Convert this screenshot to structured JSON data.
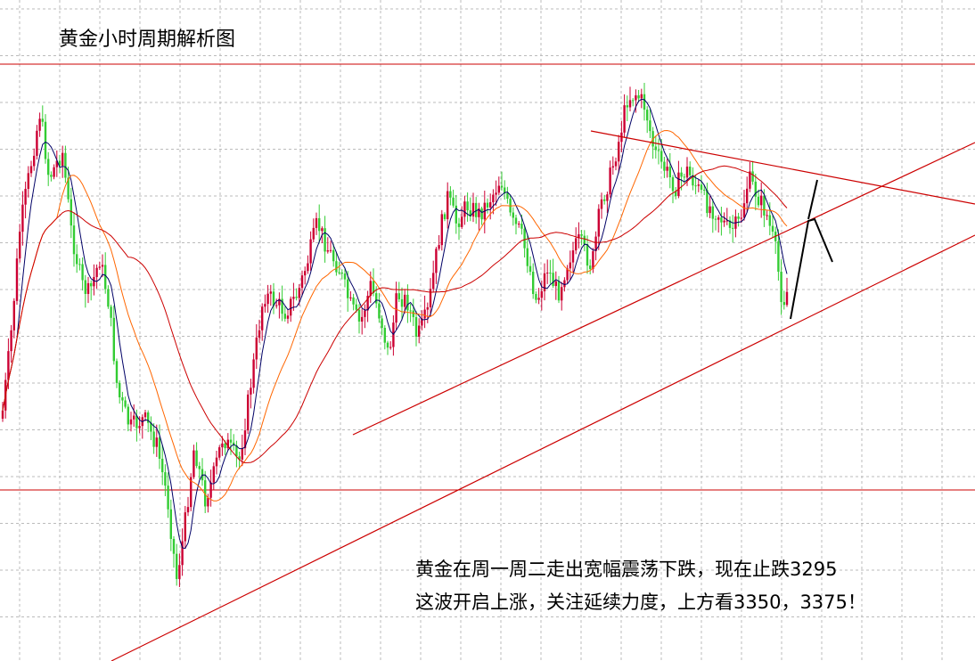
{
  "chart_data": {
    "type": "candlestick",
    "title": "黄金小时周期解析图",
    "annotation": [
      "黄金在周一周二走出宽幅震荡下跌，现在止跌3295",
      "这波开启上涨，关注延续力度，上方看3350，3375！"
    ],
    "price_levels_mentioned": [
      3295,
      3350,
      3375
    ],
    "grid": true,
    "legend": "none",
    "colors": {
      "up_candle": "#cc0033",
      "down_candle": "#33cc33",
      "ma_short": "#000066",
      "ma_medium": "#ff6600",
      "ma_long": "#cc0000",
      "trend_lines": "#cc0000",
      "projection": "#000000",
      "grid": "#bbbbbb"
    }
  }
}
